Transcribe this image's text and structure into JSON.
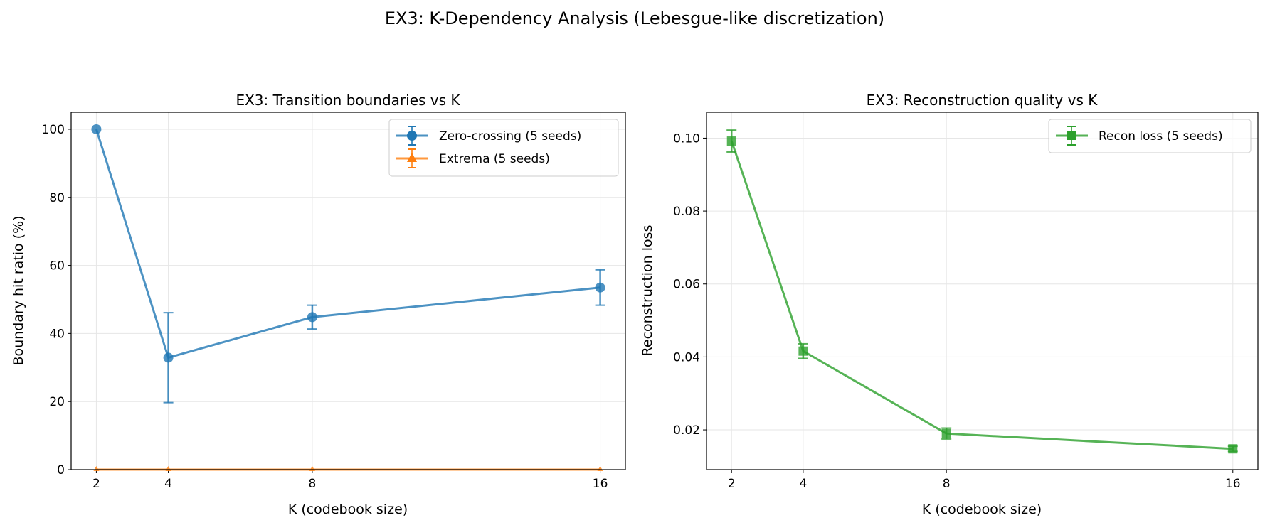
{
  "suptitle": "EX3: K-Dependency Analysis (Lebesgue-like discretization)",
  "chart_data": [
    {
      "type": "line",
      "title": "EX3: Transition boundaries vs K",
      "xlabel": "K (codebook size)",
      "ylabel": "Boundary hit ratio (%)",
      "x": [
        2,
        4,
        8,
        16
      ],
      "xticks": [
        "2",
        "4",
        "8",
        "16"
      ],
      "yticks": [
        "0",
        "20",
        "40",
        "60",
        "80",
        "100"
      ],
      "xlim": [
        1.3,
        16.7
      ],
      "ylim": [
        0,
        105
      ],
      "grid": true,
      "legend": "top-right",
      "series": [
        {
          "name": "Zero-crossing (5 seeds)",
          "values": [
            100,
            32.9,
            44.8,
            53.5
          ],
          "errors": [
            0,
            13.2,
            3.5,
            5.2
          ],
          "color": "#1f77b4",
          "marker": "circle"
        },
        {
          "name": "Extrema (5 seeds)",
          "values": [
            0,
            0,
            0,
            0
          ],
          "errors": [
            0,
            0,
            0,
            0
          ],
          "color": "#ff7f0e",
          "marker": "triangle"
        }
      ]
    },
    {
      "type": "line",
      "title": "EX3: Reconstruction quality vs K",
      "xlabel": "K (codebook size)",
      "ylabel": "Reconstruction loss",
      "x": [
        2,
        4,
        8,
        16
      ],
      "xticks": [
        "2",
        "4",
        "8",
        "16"
      ],
      "yticks": [
        "0.02",
        "0.04",
        "0.06",
        "0.08",
        "0.10"
      ],
      "xlim": [
        1.3,
        16.7
      ],
      "ylim": [
        0.0091,
        0.1071
      ],
      "grid": true,
      "legend": "top-right",
      "series": [
        {
          "name": "Recon loss (5 seeds)",
          "values": [
            0.0992,
            0.0416,
            0.019,
            0.0148
          ],
          "errors": [
            0.003,
            0.002,
            0.0015,
            0.0007
          ],
          "color": "#2ca02c",
          "marker": "square"
        }
      ]
    }
  ]
}
